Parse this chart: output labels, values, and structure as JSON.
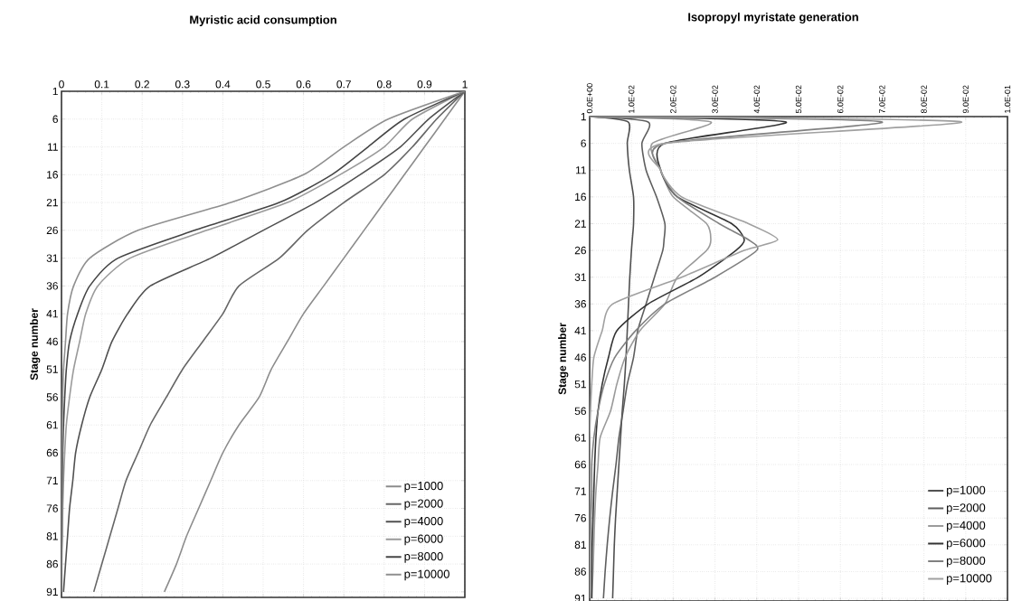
{
  "chart_data": [
    {
      "type": "line",
      "title": "Myristic acid consumption",
      "ylabel": "Stage number",
      "orientation": "horizontal",
      "x": [
        1,
        6,
        11,
        16,
        21,
        26,
        31,
        36,
        41,
        46,
        51,
        56,
        61,
        66,
        71,
        76,
        81,
        86,
        91
      ],
      "xlim": [
        0,
        1
      ],
      "xticks": [
        0,
        0.1,
        0.2,
        0.3,
        0.4,
        0.5,
        0.6,
        0.7,
        0.8,
        0.9,
        1
      ],
      "ylim": [
        92,
        1
      ],
      "yticks": [
        1,
        6,
        11,
        16,
        21,
        26,
        31,
        36,
        41,
        46,
        51,
        56,
        61,
        66,
        71,
        76,
        81,
        86,
        91
      ],
      "grid": true,
      "legend": "bottom right",
      "marker": "none",
      "line_style": "solid",
      "series": [
        {
          "name": "p=1000",
          "color": "#8c8c8c",
          "values": [
            1,
            0.95,
            0.9,
            0.85,
            0.8,
            0.75,
            0.7,
            0.65,
            0.6,
            0.56,
            0.52,
            0.49,
            0.44,
            0.4,
            0.37,
            0.34,
            0.31,
            0.285,
            0.255
          ]
        },
        {
          "name": "p=2000",
          "color": "#666666",
          "values": [
            1,
            0.93,
            0.87,
            0.8,
            0.7,
            0.61,
            0.54,
            0.44,
            0.4,
            0.35,
            0.3,
            0.26,
            0.22,
            0.19,
            0.16,
            0.14,
            0.12,
            0.1,
            0.08
          ]
        },
        {
          "name": "p=4000",
          "color": "#505050",
          "values": [
            1,
            0.91,
            0.84,
            0.74,
            0.63,
            0.5,
            0.37,
            0.22,
            0.164,
            0.125,
            0.1,
            0.07,
            0.05,
            0.035,
            0.028,
            0.02,
            0.015,
            0.01,
            0.005
          ]
        },
        {
          "name": "p=6000",
          "color": "#9a9a9a",
          "values": [
            1,
            0.87,
            0.8,
            0.69,
            0.56,
            0.36,
            0.17,
            0.09,
            0.06,
            0.045,
            0.03,
            0.02,
            0.012,
            0.008,
            0.005,
            0.003,
            0.002,
            0.001,
            0.001
          ]
        },
        {
          "name": "p=8000",
          "color": "#454545",
          "values": [
            1,
            0.85,
            0.76,
            0.67,
            0.54,
            0.33,
            0.14,
            0.07,
            0.04,
            0.02,
            0.012,
            0.008,
            0.005,
            0.003,
            0.002,
            0.001,
            0.001,
            0,
            0
          ]
        },
        {
          "name": "p=10000",
          "color": "#8f8f8f",
          "values": [
            1,
            0.81,
            0.7,
            0.6,
            0.42,
            0.19,
            0.07,
            0.03,
            0.015,
            0.01,
            0.005,
            0.003,
            0.002,
            0.001,
            0,
            0,
            0,
            0,
            0
          ]
        }
      ]
    },
    {
      "type": "line",
      "title": "Isopropyl myristate generation",
      "ylabel": "Stage number",
      "orientation": "horizontal",
      "x": [
        1,
        2,
        6,
        11,
        16,
        21,
        24,
        26,
        31,
        36,
        41,
        46,
        51,
        56,
        61,
        66,
        71,
        76,
        81,
        86,
        91
      ],
      "xlim": [
        0,
        0.1
      ],
      "xticks": [
        {
          "value": 0,
          "label": "0.0E+00"
        },
        {
          "value": 0.01,
          "label": "1.0E-02"
        },
        {
          "value": 0.02,
          "label": "2.0E-02"
        },
        {
          "value": 0.03,
          "label": "3.0E-02"
        },
        {
          "value": 0.04,
          "label": "4.0E-02"
        },
        {
          "value": 0.05,
          "label": "5.0E-02"
        },
        {
          "value": 0.06,
          "label": "6.0E-02"
        },
        {
          "value": 0.07,
          "label": "7.0E-02"
        },
        {
          "value": 0.08,
          "label": "8.0E-02"
        },
        {
          "value": 0.09,
          "label": "9.0E-02"
        },
        {
          "value": 0.1,
          "label": "1.0E-01"
        }
      ],
      "ylim": [
        91.5,
        1
      ],
      "yticks": [
        1,
        6,
        11,
        16,
        21,
        26,
        31,
        36,
        41,
        46,
        51,
        56,
        61,
        66,
        71,
        76,
        81,
        86,
        91
      ],
      "grid": true,
      "legend": "bottom right",
      "marker": "none",
      "line_style": "solid",
      "series": [
        {
          "name": "p=1000",
          "color": "#505050",
          "values": [
            0,
            0.0092,
            0.009,
            0.0095,
            0.0105,
            0.0105,
            0.0102,
            0.01,
            0.0096,
            0.0093,
            0.009,
            0.0087,
            0.0083,
            0.0078,
            0.0074,
            0.007,
            0.0066,
            0.0062,
            0.0059,
            0.0057,
            0.0055
          ]
        },
        {
          "name": "p=2000",
          "color": "#5e5e5e",
          "values": [
            0,
            0.014,
            0.0125,
            0.0135,
            0.016,
            0.018,
            0.0178,
            0.0175,
            0.0155,
            0.0135,
            0.0115,
            0.0105,
            0.009,
            0.008,
            0.007,
            0.0063,
            0.0055,
            0.0048,
            0.0042,
            0.0037,
            0.0033
          ]
        },
        {
          "name": "p=4000",
          "color": "#9a9a9a",
          "values": [
            0,
            0.029,
            0.015,
            0.017,
            0.02,
            0.028,
            0.029,
            0.028,
            0.021,
            0.018,
            0.012,
            0.0085,
            0.0065,
            0.005,
            0.0025,
            0.002,
            0.0015,
            0.0012,
            0.001,
            0.0008,
            0.0005
          ]
        },
        {
          "name": "p=6000",
          "color": "#333333",
          "values": [
            0,
            0.047,
            0.018,
            0.017,
            0.021,
            0.034,
            0.037,
            0.035,
            0.026,
            0.014,
            0.0065,
            0.0045,
            0.003,
            0.002,
            0.0015,
            0.0012,
            0.001,
            0.0008,
            0.0006,
            0.0005,
            0.0005
          ]
        },
        {
          "name": "p=8000",
          "color": "#808080",
          "values": [
            0,
            0.07,
            0.018,
            0.017,
            0.021,
            0.031,
            0.038,
            0.04,
            0.03,
            0.018,
            0.011,
            0.006,
            0.0035,
            0.002,
            0.001,
            0.0005,
            0.0005,
            0.0003,
            0.0002,
            0.0001,
            0
          ]
        },
        {
          "name": "p=10000",
          "color": "#a0a0a0",
          "values": [
            0,
            0.089,
            0.018,
            0.017,
            0.022,
            0.038,
            0.045,
            0.037,
            0.022,
            0.0055,
            0.003,
            0.001,
            0.0005,
            0.0002,
            0,
            0,
            0,
            0,
            0,
            0,
            0
          ]
        }
      ]
    }
  ]
}
